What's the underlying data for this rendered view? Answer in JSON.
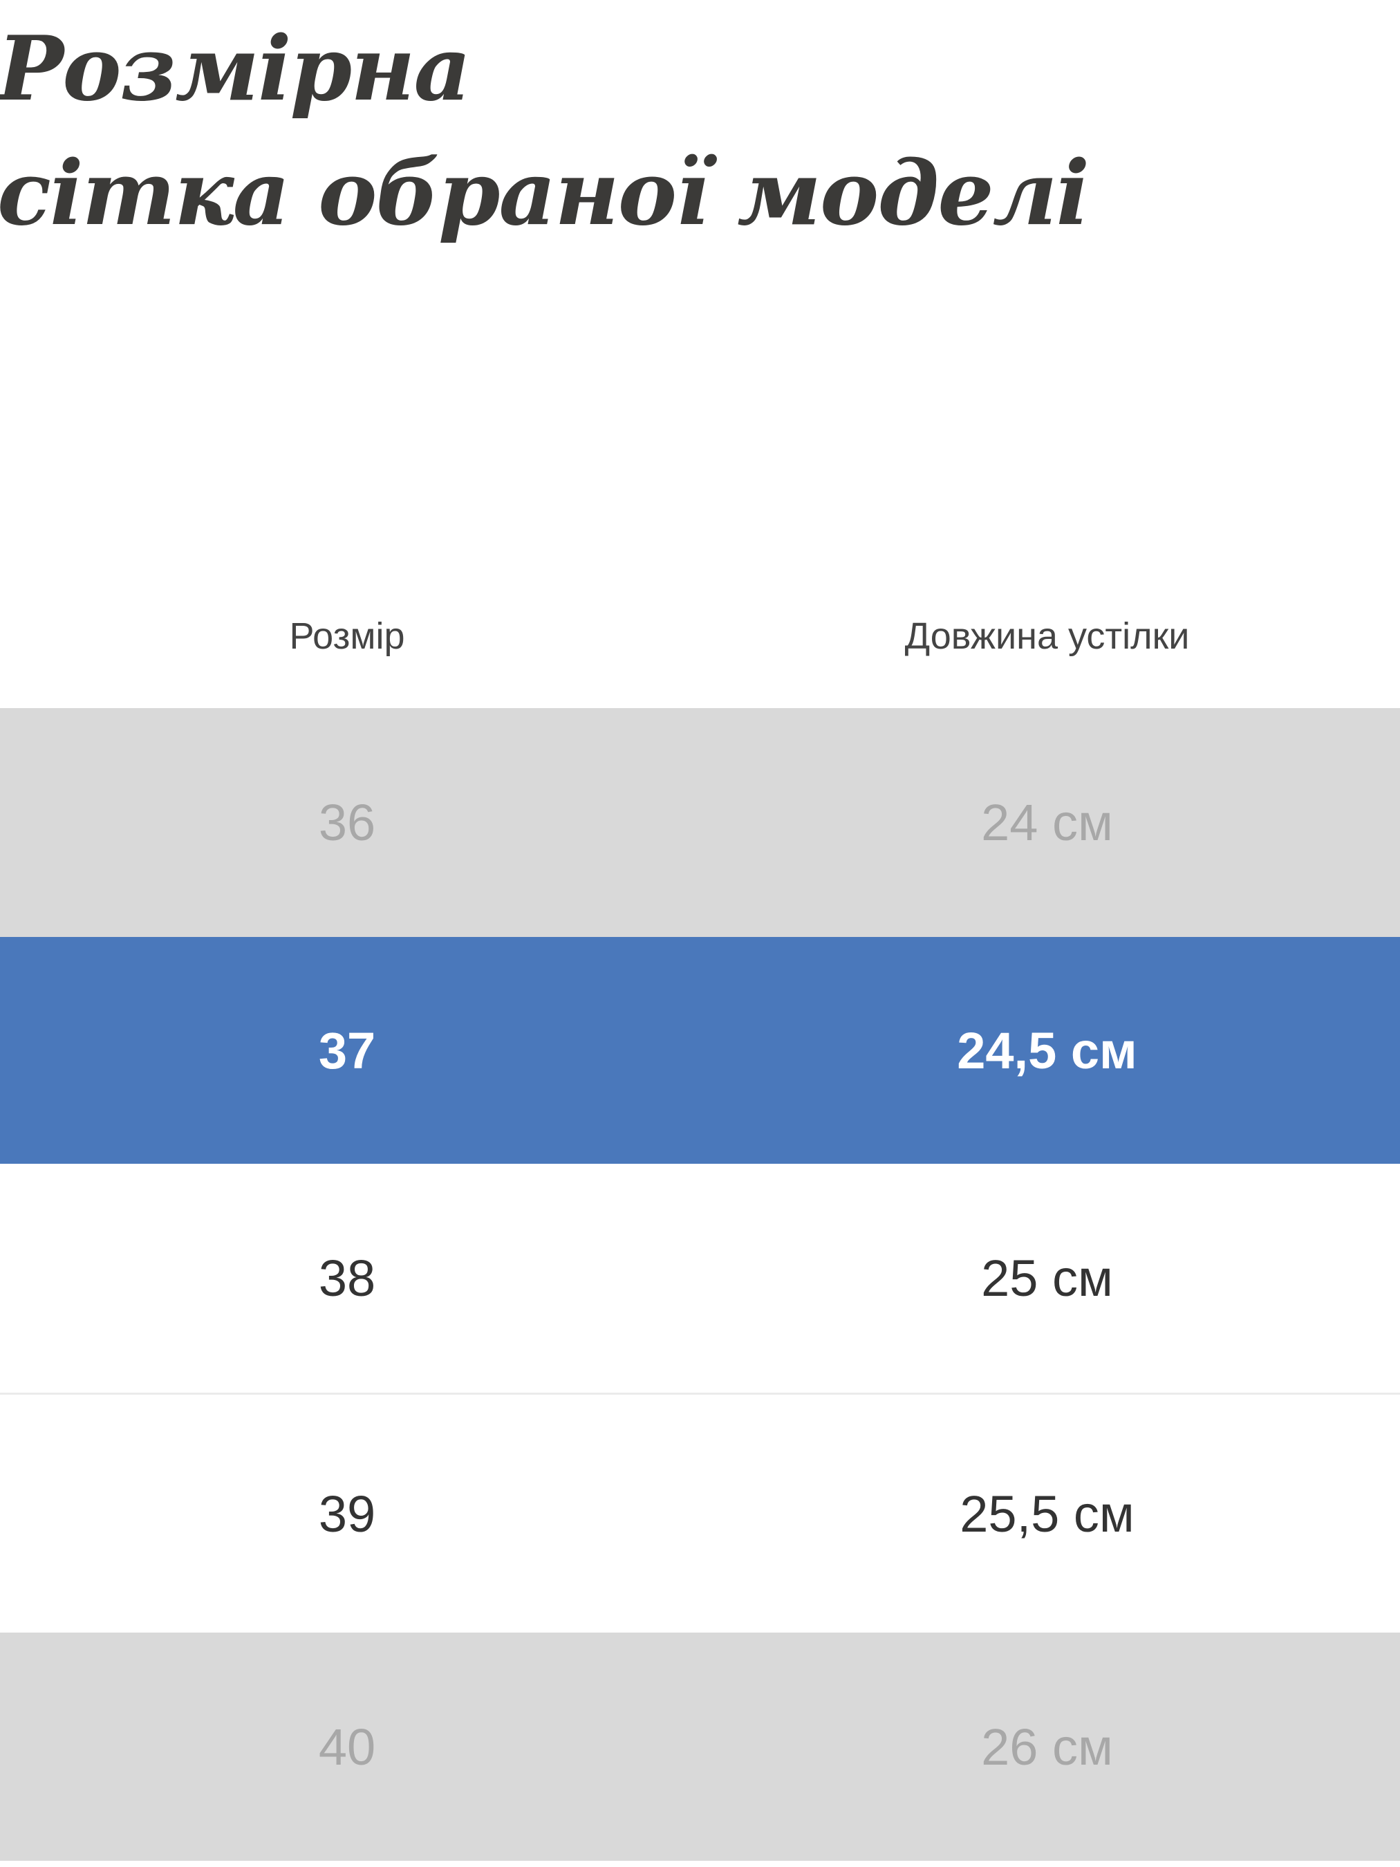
{
  "title": {
    "line1": "Розмірна",
    "line2": "сітка обраної моделі"
  },
  "table": {
    "headers": [
      "Розмір",
      "Довжина устілки"
    ],
    "rows": [
      {
        "size": "36",
        "length": "24 см",
        "state": "muted"
      },
      {
        "size": "37",
        "length": "24,5 см",
        "state": "selected"
      },
      {
        "size": "38",
        "length": "25 см",
        "state": "normal"
      },
      {
        "size": "39",
        "length": "25,5 см",
        "state": "normal"
      },
      {
        "size": "40",
        "length": "26 см",
        "state": "muted"
      }
    ]
  },
  "colors": {
    "selected": "#4a78bb",
    "muted_bg": "#d9d9d9",
    "muted_text": "#a8a8a8",
    "text": "#333333"
  }
}
